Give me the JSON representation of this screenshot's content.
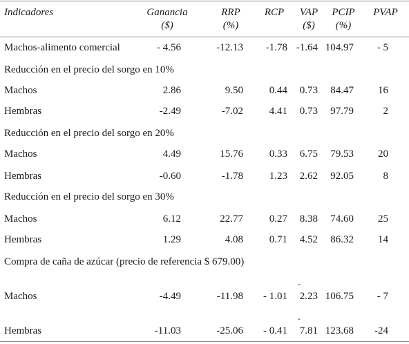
{
  "header": {
    "indicadores": "Indicadores",
    "cols": [
      {
        "name": "Ganancia",
        "unit": "($)"
      },
      {
        "name": "RRP",
        "unit": "(%)"
      },
      {
        "name": "RCP",
        "unit": ""
      },
      {
        "name": "VAP",
        "unit": "($)"
      },
      {
        "name": "PCIP",
        "unit": "(%)"
      },
      {
        "name": "PVAP",
        "unit": ""
      }
    ]
  },
  "rows": [
    {
      "label": "Machos-alimento comercial",
      "values": [
        "- 4.56",
        "-12.13",
        "-1.78",
        "-1.64",
        "104.97",
        "- 5"
      ]
    },
    {
      "section": "Reducción en el precio del sorgo en 10%"
    },
    {
      "label": "Machos",
      "values": [
        "2.86",
        "9.50",
        "0.44",
        "0.73",
        "84.47",
        "16"
      ]
    },
    {
      "label": "Hembras",
      "values": [
        "-2.49",
        "-7.02",
        "4.41",
        "0.73",
        "97.79",
        "2"
      ]
    },
    {
      "section": "Reducción en el precio del sorgo en 20%"
    },
    {
      "label": "Machos",
      "values": [
        "4.49",
        "15.76",
        "0.33",
        "6.75",
        "79.53",
        "20"
      ]
    },
    {
      "label": "Hembras",
      "values": [
        "-0.60",
        "-1.78",
        "1.23",
        "2.62",
        "92.05",
        "8"
      ]
    },
    {
      "section": "Reducción en el precio del sorgo en 30%"
    },
    {
      "label": "Machos",
      "values": [
        "6.12",
        "22.77",
        "0.27",
        "8.38",
        "74.60",
        "25"
      ]
    },
    {
      "label": "Hembras",
      "values": [
        "1.29",
        "4.08",
        "0.71",
        "4.52",
        "86.32",
        "14"
      ]
    },
    {
      "section": "Compra de caña de azúcar (precio de referencia $ 679.00)"
    },
    {
      "label": "Machos",
      "values": [
        "-4.49",
        "-11.98",
        "- 1.01",
        "2.23",
        "106.75",
        "- 7"
      ],
      "vap_prefix": "-"
    },
    {
      "label": "Hembras",
      "values": [
        "-11.03",
        "-25.06",
        "- 0.41",
        "7.81",
        "123.68",
        "-24"
      ],
      "vap_prefix": "-"
    }
  ]
}
